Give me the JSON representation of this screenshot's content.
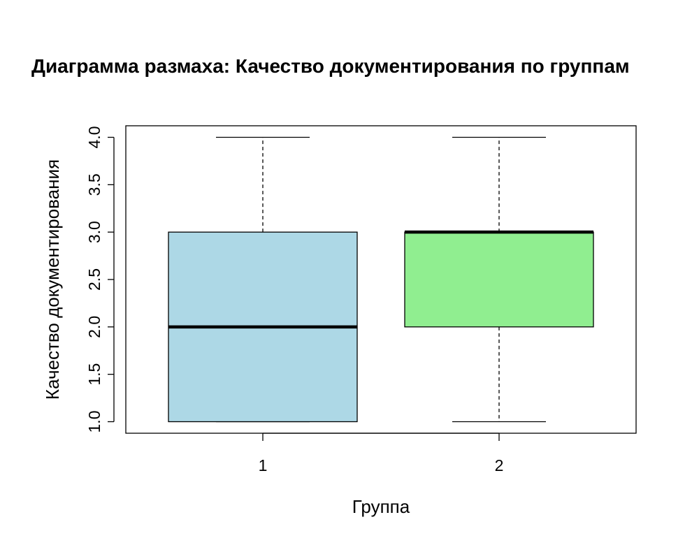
{
  "chart_data": {
    "type": "box",
    "title": "Диаграмма размаха: Качество документирования по группам",
    "xlabel": "Группа",
    "ylabel": "Качество документирования",
    "categories": [
      "1",
      "2"
    ],
    "yticks": [
      "1.0",
      "1.5",
      "2.0",
      "2.5",
      "3.0",
      "3.5",
      "4.0"
    ],
    "ylim": [
      0.94,
      4.06
    ],
    "grid": false,
    "legend": "none",
    "boxes": [
      {
        "category": "1",
        "min": 1.0,
        "q1": 1.0,
        "median": 2.0,
        "q3": 3.0,
        "max": 4.0,
        "color": "#add8e6"
      },
      {
        "category": "2",
        "min": 1.0,
        "q1": 2.0,
        "median": 3.0,
        "q3": 3.0,
        "max": 4.0,
        "color": "#90ee90"
      }
    ]
  }
}
